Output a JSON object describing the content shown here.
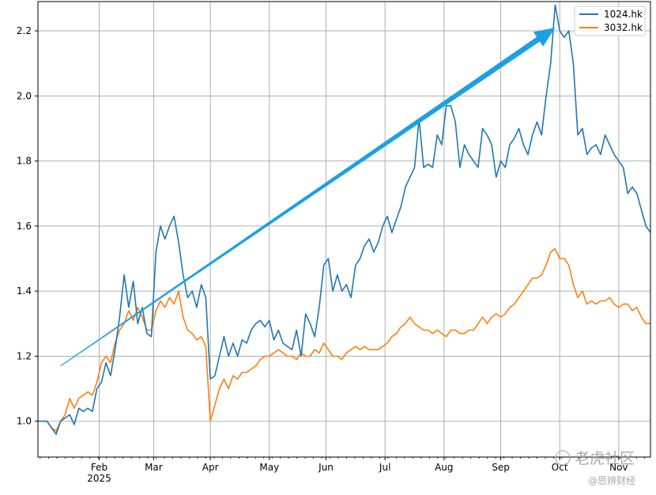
{
  "chart_data": {
    "type": "line",
    "title": "",
    "xlabel": "",
    "ylabel": "",
    "x_tick_labels": [
      "Feb",
      "Mar",
      "Apr",
      "May",
      "Jun",
      "Jul",
      "Aug",
      "Sep",
      "Oct",
      "Nov"
    ],
    "x_year_label": "2025",
    "y_ticks": [
      "1.0",
      "1.2",
      "1.4",
      "1.6",
      "1.8",
      "2.0",
      "2.2"
    ],
    "y_tick_values": [
      1.0,
      1.2,
      1.4,
      1.6,
      1.8,
      2.0,
      2.2
    ],
    "ylim": [
      0.89,
      2.29
    ],
    "x_range_days": [
      0,
      270
    ],
    "x_tick_days": [
      27,
      51,
      76,
      102,
      127,
      153,
      179,
      204,
      230,
      256
    ],
    "grid": true,
    "legend_position": "top-right",
    "series": [
      {
        "name": "1024.hk",
        "color": "#1f77b4",
        "points": [
          [
            0,
            1.0
          ],
          [
            4,
            1.0
          ],
          [
            6,
            0.98
          ],
          [
            8,
            0.96
          ],
          [
            10,
            1.0
          ],
          [
            12,
            1.01
          ],
          [
            14,
            1.02
          ],
          [
            16,
            0.99
          ],
          [
            18,
            1.04
          ],
          [
            20,
            1.03
          ],
          [
            22,
            1.04
          ],
          [
            24,
            1.03
          ],
          [
            26,
            1.1
          ],
          [
            28,
            1.12
          ],
          [
            30,
            1.18
          ],
          [
            32,
            1.14
          ],
          [
            34,
            1.22
          ],
          [
            36,
            1.32
          ],
          [
            38,
            1.45
          ],
          [
            40,
            1.35
          ],
          [
            42,
            1.43
          ],
          [
            44,
            1.3
          ],
          [
            46,
            1.35
          ],
          [
            48,
            1.27
          ],
          [
            50,
            1.26
          ],
          [
            52,
            1.52
          ],
          [
            54,
            1.6
          ],
          [
            56,
            1.56
          ],
          [
            58,
            1.6
          ],
          [
            60,
            1.63
          ],
          [
            62,
            1.55
          ],
          [
            64,
            1.45
          ],
          [
            66,
            1.38
          ],
          [
            68,
            1.4
          ],
          [
            70,
            1.35
          ],
          [
            72,
            1.42
          ],
          [
            74,
            1.38
          ],
          [
            76,
            1.13
          ],
          [
            78,
            1.14
          ],
          [
            80,
            1.2
          ],
          [
            82,
            1.26
          ],
          [
            84,
            1.2
          ],
          [
            86,
            1.24
          ],
          [
            88,
            1.2
          ],
          [
            90,
            1.25
          ],
          [
            92,
            1.24
          ],
          [
            94,
            1.28
          ],
          [
            96,
            1.3
          ],
          [
            98,
            1.31
          ],
          [
            100,
            1.29
          ],
          [
            102,
            1.31
          ],
          [
            104,
            1.25
          ],
          [
            106,
            1.28
          ],
          [
            108,
            1.24
          ],
          [
            110,
            1.23
          ],
          [
            112,
            1.22
          ],
          [
            114,
            1.28
          ],
          [
            116,
            1.2
          ],
          [
            118,
            1.33
          ],
          [
            120,
            1.3
          ],
          [
            122,
            1.26
          ],
          [
            124,
            1.35
          ],
          [
            126,
            1.48
          ],
          [
            128,
            1.5
          ],
          [
            130,
            1.4
          ],
          [
            132,
            1.45
          ],
          [
            134,
            1.4
          ],
          [
            136,
            1.42
          ],
          [
            138,
            1.38
          ],
          [
            140,
            1.48
          ],
          [
            142,
            1.5
          ],
          [
            144,
            1.54
          ],
          [
            146,
            1.56
          ],
          [
            148,
            1.52
          ],
          [
            150,
            1.55
          ],
          [
            152,
            1.6
          ],
          [
            154,
            1.63
          ],
          [
            156,
            1.58
          ],
          [
            158,
            1.62
          ],
          [
            160,
            1.66
          ],
          [
            162,
            1.72
          ],
          [
            164,
            1.75
          ],
          [
            166,
            1.78
          ],
          [
            168,
            1.93
          ],
          [
            170,
            1.78
          ],
          [
            172,
            1.79
          ],
          [
            174,
            1.78
          ],
          [
            176,
            1.88
          ],
          [
            178,
            1.85
          ],
          [
            180,
            1.97
          ],
          [
            182,
            1.97
          ],
          [
            184,
            1.92
          ],
          [
            186,
            1.78
          ],
          [
            188,
            1.85
          ],
          [
            190,
            1.82
          ],
          [
            192,
            1.8
          ],
          [
            194,
            1.78
          ],
          [
            196,
            1.9
          ],
          [
            198,
            1.88
          ],
          [
            200,
            1.85
          ],
          [
            202,
            1.75
          ],
          [
            204,
            1.8
          ],
          [
            206,
            1.78
          ],
          [
            208,
            1.85
          ],
          [
            210,
            1.87
          ],
          [
            212,
            1.9
          ],
          [
            214,
            1.85
          ],
          [
            216,
            1.82
          ],
          [
            218,
            1.88
          ],
          [
            220,
            1.92
          ],
          [
            222,
            1.88
          ],
          [
            224,
            2.0
          ],
          [
            226,
            2.1
          ],
          [
            228,
            2.28
          ],
          [
            230,
            2.2
          ],
          [
            232,
            2.18
          ],
          [
            234,
            2.2
          ],
          [
            236,
            2.1
          ],
          [
            238,
            1.88
          ],
          [
            240,
            1.9
          ],
          [
            242,
            1.82
          ],
          [
            244,
            1.84
          ],
          [
            246,
            1.85
          ],
          [
            248,
            1.82
          ],
          [
            250,
            1.88
          ],
          [
            252,
            1.85
          ],
          [
            254,
            1.82
          ],
          [
            256,
            1.8
          ],
          [
            258,
            1.78
          ],
          [
            260,
            1.7
          ],
          [
            262,
            1.72
          ],
          [
            264,
            1.7
          ],
          [
            266,
            1.65
          ],
          [
            268,
            1.6
          ],
          [
            270,
            1.58
          ]
        ]
      },
      {
        "name": "3032.hk",
        "color": "#ff7f0e",
        "points": [
          [
            0,
            1.0
          ],
          [
            4,
            1.0
          ],
          [
            6,
            0.98
          ],
          [
            8,
            0.97
          ],
          [
            10,
            1.0
          ],
          [
            12,
            1.02
          ],
          [
            14,
            1.07
          ],
          [
            16,
            1.04
          ],
          [
            18,
            1.07
          ],
          [
            20,
            1.08
          ],
          [
            22,
            1.09
          ],
          [
            24,
            1.08
          ],
          [
            26,
            1.12
          ],
          [
            28,
            1.18
          ],
          [
            30,
            1.2
          ],
          [
            32,
            1.18
          ],
          [
            34,
            1.24
          ],
          [
            36,
            1.28
          ],
          [
            38,
            1.3
          ],
          [
            40,
            1.34
          ],
          [
            42,
            1.31
          ],
          [
            44,
            1.35
          ],
          [
            46,
            1.32
          ],
          [
            48,
            1.28
          ],
          [
            50,
            1.28
          ],
          [
            52,
            1.34
          ],
          [
            54,
            1.37
          ],
          [
            56,
            1.35
          ],
          [
            58,
            1.38
          ],
          [
            60,
            1.36
          ],
          [
            62,
            1.4
          ],
          [
            64,
            1.32
          ],
          [
            66,
            1.28
          ],
          [
            68,
            1.27
          ],
          [
            70,
            1.25
          ],
          [
            72,
            1.26
          ],
          [
            74,
            1.23
          ],
          [
            76,
            1.0
          ],
          [
            78,
            1.05
          ],
          [
            80,
            1.1
          ],
          [
            82,
            1.13
          ],
          [
            84,
            1.1
          ],
          [
            86,
            1.14
          ],
          [
            88,
            1.13
          ],
          [
            90,
            1.15
          ],
          [
            92,
            1.15
          ],
          [
            94,
            1.16
          ],
          [
            96,
            1.17
          ],
          [
            98,
            1.19
          ],
          [
            100,
            1.2
          ],
          [
            102,
            1.2
          ],
          [
            104,
            1.21
          ],
          [
            106,
            1.22
          ],
          [
            108,
            1.21
          ],
          [
            110,
            1.2
          ],
          [
            112,
            1.2
          ],
          [
            114,
            1.19
          ],
          [
            116,
            1.21
          ],
          [
            118,
            1.2
          ],
          [
            120,
            1.2
          ],
          [
            122,
            1.22
          ],
          [
            124,
            1.21
          ],
          [
            126,
            1.24
          ],
          [
            128,
            1.22
          ],
          [
            130,
            1.2
          ],
          [
            132,
            1.2
          ],
          [
            134,
            1.19
          ],
          [
            136,
            1.21
          ],
          [
            138,
            1.22
          ],
          [
            140,
            1.23
          ],
          [
            142,
            1.22
          ],
          [
            144,
            1.23
          ],
          [
            146,
            1.22
          ],
          [
            148,
            1.22
          ],
          [
            150,
            1.22
          ],
          [
            152,
            1.23
          ],
          [
            154,
            1.24
          ],
          [
            156,
            1.26
          ],
          [
            158,
            1.27
          ],
          [
            160,
            1.29
          ],
          [
            162,
            1.3
          ],
          [
            164,
            1.32
          ],
          [
            166,
            1.3
          ],
          [
            168,
            1.29
          ],
          [
            170,
            1.28
          ],
          [
            172,
            1.28
          ],
          [
            174,
            1.27
          ],
          [
            176,
            1.28
          ],
          [
            178,
            1.27
          ],
          [
            180,
            1.26
          ],
          [
            182,
            1.28
          ],
          [
            184,
            1.28
          ],
          [
            186,
            1.27
          ],
          [
            188,
            1.27
          ],
          [
            190,
            1.28
          ],
          [
            192,
            1.28
          ],
          [
            194,
            1.3
          ],
          [
            196,
            1.32
          ],
          [
            198,
            1.3
          ],
          [
            200,
            1.32
          ],
          [
            202,
            1.33
          ],
          [
            204,
            1.32
          ],
          [
            206,
            1.33
          ],
          [
            208,
            1.35
          ],
          [
            210,
            1.36
          ],
          [
            212,
            1.38
          ],
          [
            214,
            1.4
          ],
          [
            216,
            1.42
          ],
          [
            218,
            1.44
          ],
          [
            220,
            1.44
          ],
          [
            222,
            1.45
          ],
          [
            224,
            1.48
          ],
          [
            226,
            1.52
          ],
          [
            228,
            1.53
          ],
          [
            230,
            1.5
          ],
          [
            232,
            1.5
          ],
          [
            234,
            1.48
          ],
          [
            236,
            1.42
          ],
          [
            238,
            1.38
          ],
          [
            240,
            1.4
          ],
          [
            242,
            1.36
          ],
          [
            244,
            1.37
          ],
          [
            246,
            1.36
          ],
          [
            248,
            1.37
          ],
          [
            250,
            1.37
          ],
          [
            252,
            1.38
          ],
          [
            254,
            1.36
          ],
          [
            256,
            1.35
          ],
          [
            258,
            1.36
          ],
          [
            260,
            1.36
          ],
          [
            262,
            1.34
          ],
          [
            264,
            1.35
          ],
          [
            266,
            1.32
          ],
          [
            268,
            1.3
          ],
          [
            270,
            1.3
          ]
        ]
      }
    ],
    "annotations": [
      {
        "type": "arrow",
        "color": "#1ba1e2",
        "from_day": 10,
        "from_value": 1.17,
        "to_day": 228,
        "to_value": 2.21
      }
    ]
  },
  "watermark": {
    "brand_text": "老虎社区",
    "sub_text": "@思辨财经"
  }
}
